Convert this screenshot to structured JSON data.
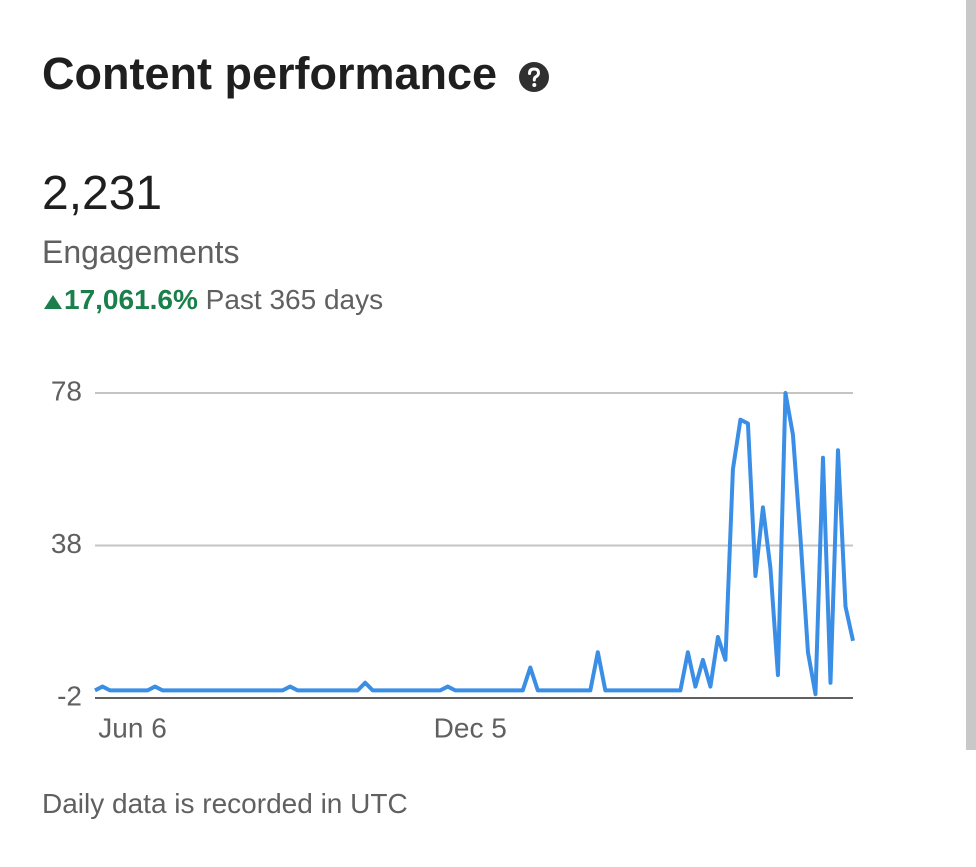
{
  "header": {
    "title": "Content performance"
  },
  "metric": {
    "value": "2,231",
    "label": "Engagements",
    "change": "17,061.6%",
    "period": "Past 365 days"
  },
  "chart_data": {
    "type": "line",
    "categories": [
      null,
      null,
      null,
      null,
      null,
      "Jun 6",
      null,
      null,
      null,
      null,
      null,
      null,
      null,
      null,
      null,
      null,
      null,
      null,
      null,
      null,
      null,
      null,
      null,
      null,
      null,
      null,
      null,
      null,
      null,
      null,
      null,
      null,
      null,
      null,
      null,
      null,
      null,
      null,
      null,
      null,
      null,
      null,
      null,
      null,
      null,
      null,
      null,
      null,
      null,
      null,
      "Dec 5",
      null,
      null,
      null,
      null,
      null,
      null,
      null,
      null,
      null,
      null,
      null,
      null,
      null,
      null,
      null,
      null,
      null,
      null,
      null,
      null,
      null,
      null,
      null,
      null,
      null,
      null,
      null,
      null,
      null,
      null,
      null,
      null,
      null,
      null,
      null,
      null,
      null,
      null,
      null,
      null,
      null,
      null,
      null,
      null,
      null,
      null,
      null,
      null,
      null,
      null,
      null
    ],
    "series": [
      {
        "name": "Engagements",
        "color": "#3a8ee6",
        "values": [
          0,
          1,
          0,
          0,
          0,
          0,
          0,
          0,
          1,
          0,
          0,
          0,
          0,
          0,
          0,
          0,
          0,
          0,
          0,
          0,
          0,
          0,
          0,
          0,
          0,
          0,
          1,
          0,
          0,
          0,
          0,
          0,
          0,
          0,
          0,
          0,
          2,
          0,
          0,
          0,
          0,
          0,
          0,
          0,
          0,
          0,
          0,
          1,
          0,
          0,
          0,
          0,
          0,
          0,
          0,
          0,
          0,
          0,
          6,
          0,
          0,
          0,
          0,
          0,
          0,
          0,
          0,
          10,
          0,
          0,
          0,
          0,
          0,
          0,
          0,
          0,
          0,
          0,
          0,
          10,
          1,
          8,
          1,
          14,
          8,
          58,
          71,
          70,
          30,
          48,
          32,
          4,
          78,
          67,
          40,
          10,
          -1,
          61,
          2,
          63,
          22,
          13
        ]
      }
    ],
    "ylim": [
      -2,
      78
    ],
    "yticks": [
      -2,
      38,
      78
    ],
    "grid": true
  },
  "footer": "Daily data is recorded in UTC"
}
